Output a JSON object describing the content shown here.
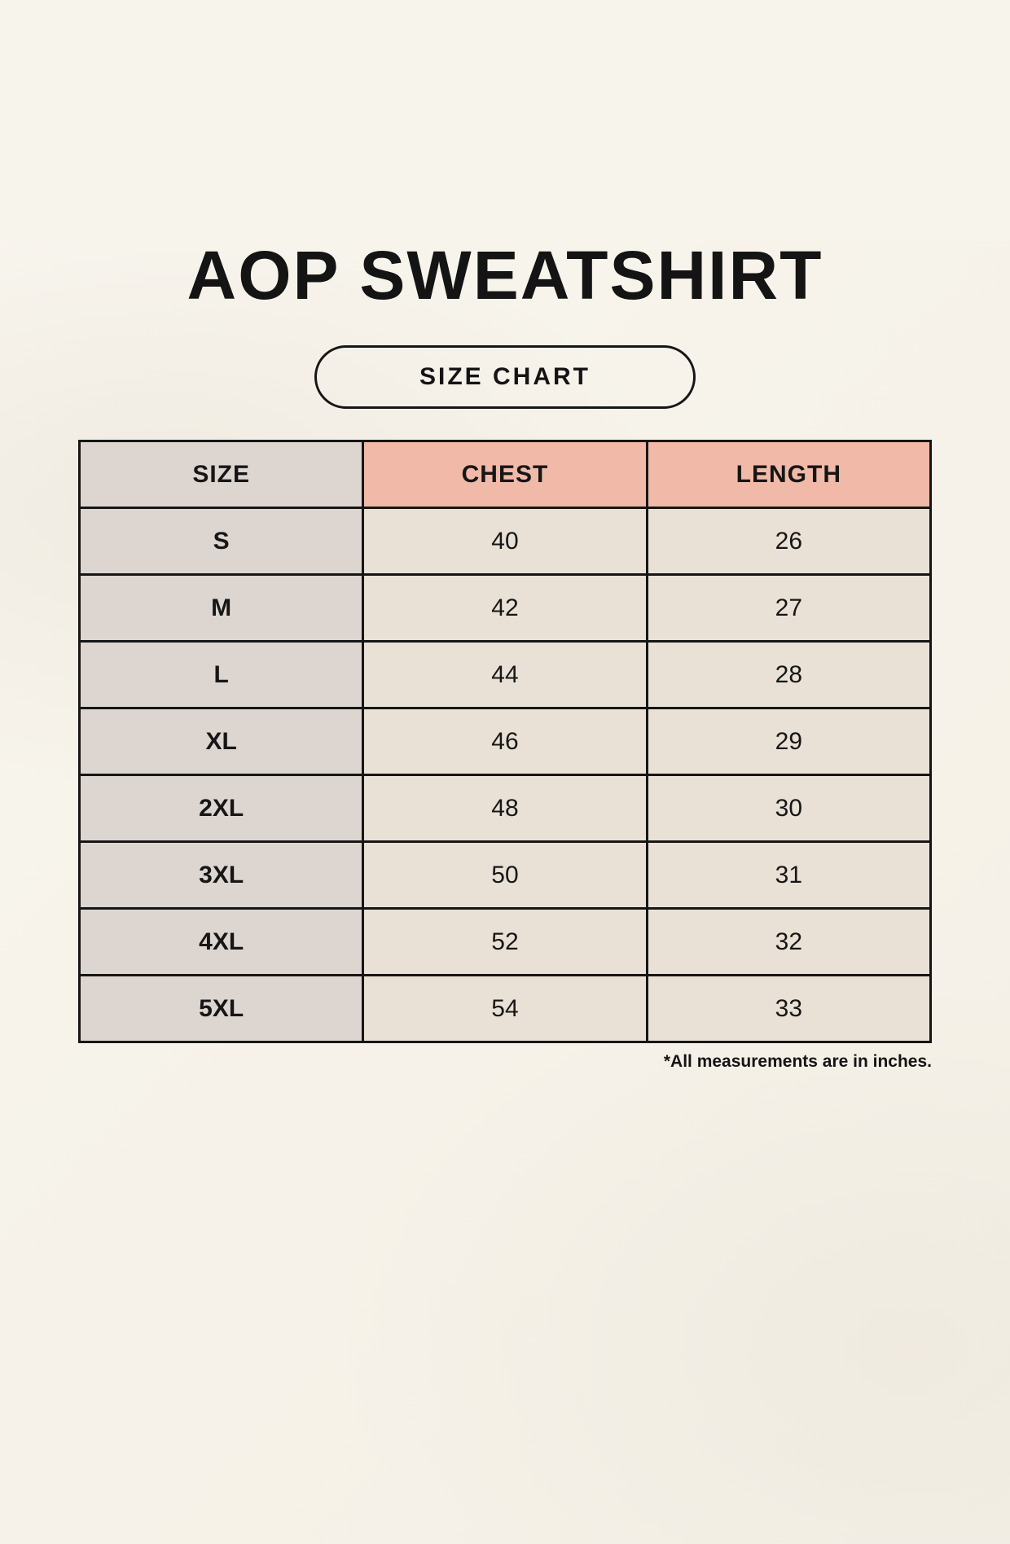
{
  "header": {
    "title": "AOP SWEATSHIRT",
    "badge_label": "SIZE CHART"
  },
  "table": {
    "columns": [
      "SIZE",
      "CHEST",
      "LENGTH"
    ],
    "rows": [
      [
        "S",
        "40",
        "26"
      ],
      [
        "M",
        "42",
        "27"
      ],
      [
        "L",
        "44",
        "28"
      ],
      [
        "XL",
        "46",
        "29"
      ],
      [
        "2XL",
        "48",
        "30"
      ],
      [
        "3XL",
        "50",
        "31"
      ],
      [
        "4XL",
        "52",
        "32"
      ],
      [
        "5XL",
        "54",
        "33"
      ]
    ],
    "footnote": "*All measurements are in inches."
  },
  "chart_data": {
    "type": "table",
    "title": "AOP SWEATSHIRT",
    "subtitle": "SIZE CHART",
    "columns": [
      "SIZE",
      "CHEST",
      "LENGTH"
    ],
    "rows": [
      {
        "size": "S",
        "chest": 40,
        "length": 26
      },
      {
        "size": "M",
        "chest": 42,
        "length": 27
      },
      {
        "size": "L",
        "chest": 44,
        "length": 28
      },
      {
        "size": "XL",
        "chest": 46,
        "length": 29
      },
      {
        "size": "2XL",
        "chest": 48,
        "length": 30
      },
      {
        "size": "3XL",
        "chest": 50,
        "length": 31
      },
      {
        "size": "4XL",
        "chest": 52,
        "length": 32
      },
      {
        "size": "5XL",
        "chest": 54,
        "length": 33
      }
    ],
    "units": "inches",
    "annotation": "*All measurements are in inches."
  },
  "colors": {
    "background": "#f7f4ec",
    "size_column_bg": "#ddd5d0",
    "measure_header_bg": "#f0b9a8",
    "value_cell_bg": "#e9e1d5",
    "border": "#161616",
    "text": "#141414"
  }
}
